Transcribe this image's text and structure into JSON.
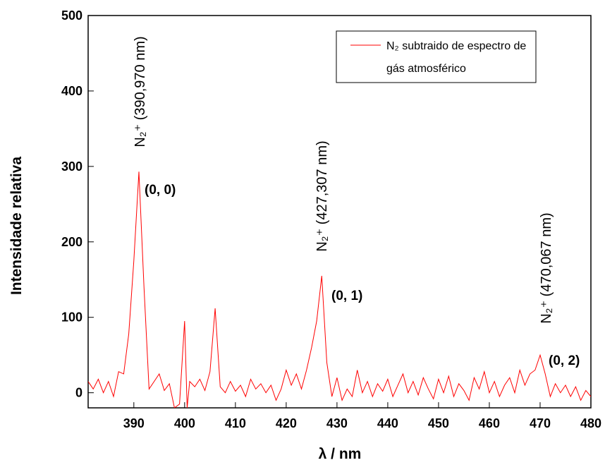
{
  "chart_data": {
    "type": "line",
    "xlabel": "λ / nm",
    "ylabel": "Intensidade relativa",
    "xlim": [
      381,
      480
    ],
    "xticks": [
      390,
      400,
      410,
      420,
      430,
      440,
      450,
      460,
      470,
      480
    ],
    "ylim": [
      -20,
      500
    ],
    "yticks": [
      0,
      100,
      200,
      300,
      400,
      500
    ],
    "legend": "upper right",
    "series": [
      {
        "name": "N₂ subtraido de espectro de gás atmosférico",
        "color": "#ff0000",
        "x": [
          381,
          382,
          383,
          384,
          385,
          386,
          387,
          388,
          389,
          390,
          391,
          392,
          393,
          394,
          395,
          396,
          397,
          398,
          399,
          400,
          400.5,
          401,
          402,
          403,
          404,
          405,
          406,
          407,
          408,
          409,
          410,
          411,
          412,
          413,
          414,
          415,
          416,
          417,
          418,
          419,
          420,
          421,
          422,
          423,
          424,
          425,
          426,
          427,
          428,
          429,
          430,
          431,
          432,
          433,
          434,
          435,
          436,
          437,
          438,
          439,
          440,
          441,
          442,
          443,
          444,
          445,
          446,
          447,
          448,
          449,
          450,
          451,
          452,
          453,
          454,
          455,
          456,
          457,
          458,
          459,
          460,
          461,
          462,
          463,
          464,
          465,
          466,
          467,
          468,
          469,
          470,
          471,
          472,
          473,
          474,
          475,
          476,
          477,
          478,
          479,
          480
        ],
        "values": [
          15,
          5,
          18,
          0,
          15,
          -5,
          28,
          25,
          78,
          175,
          293,
          140,
          5,
          15,
          25,
          3,
          12,
          -20,
          -15,
          95,
          -20,
          15,
          8,
          18,
          3,
          28,
          112,
          8,
          0,
          15,
          2,
          10,
          -5,
          18,
          5,
          12,
          0,
          10,
          -10,
          5,
          30,
          10,
          25,
          5,
          30,
          60,
          95,
          155,
          40,
          -5,
          20,
          -10,
          5,
          -5,
          30,
          0,
          15,
          -5,
          12,
          2,
          18,
          -5,
          10,
          25,
          0,
          15,
          -3,
          20,
          5,
          -8,
          18,
          0,
          22,
          -5,
          12,
          3,
          -10,
          20,
          5,
          28,
          0,
          15,
          -5,
          10,
          20,
          0,
          30,
          10,
          25,
          30,
          50,
          25,
          -5,
          12,
          0,
          10,
          -5,
          8,
          -10,
          3,
          -5
        ]
      }
    ],
    "annotations": [
      "N₂⁺ (390,970 nm)",
      "(0, 0)",
      "N₂⁺ (427,307 nm)",
      "(0, 1)",
      "N₂⁺ (470,067 nm)",
      "(0, 2)"
    ]
  }
}
